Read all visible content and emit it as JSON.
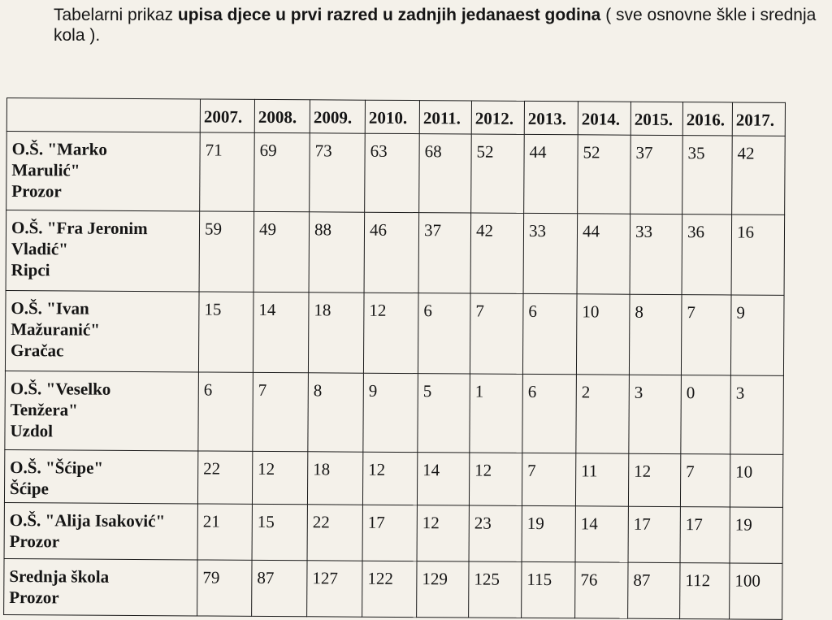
{
  "caption": {
    "part1": "Tabelarni prikaz ",
    "bold": "upisa djece u prvi razred u zadnjih jedanaest  godina",
    "part2": " ( sve osnovne škle i srednja kola )."
  },
  "table": {
    "headers": [
      "2007.",
      "2008.",
      "2009.",
      "2010.",
      "2011.",
      "2012.",
      "2013.",
      "2014.",
      "2015.",
      "2016.",
      "2017."
    ],
    "rows": [
      {
        "name_lines": [
          "O.Š. \"Marko",
          "Marulić\"",
          " Prozor"
        ],
        "values": [
          "71",
          "69",
          "73",
          "63",
          "68",
          "52",
          "44",
          "52",
          "37",
          "35",
          "42"
        ]
      },
      {
        "name_lines": [
          "O.Š. \"Fra Jeronim",
          "Vladić\"",
          "Ripci"
        ],
        "values": [
          "59",
          "49",
          "88",
          "46",
          "37",
          "42",
          "33",
          "44",
          "33",
          "36",
          "16"
        ]
      },
      {
        "name_lines": [
          "O.Š. \"Ivan",
          "Mažuranić\"",
          "Gračac"
        ],
        "values": [
          "15",
          "14",
          "18",
          "12",
          "6",
          "7",
          "6",
          "10",
          "8",
          "7",
          "9"
        ]
      },
      {
        "name_lines": [
          "O.Š. \"Veselko",
          "Tenžera\"",
          "Uzdol"
        ],
        "values": [
          "6",
          "7",
          "8",
          "9",
          "5",
          "1",
          "6",
          "2",
          "3",
          "0",
          "3"
        ]
      },
      {
        "name_lines": [
          "O.Š. \"Šćipe\"",
          "Šćipe"
        ],
        "values": [
          "22",
          "12",
          "18",
          "12",
          "14",
          "12",
          "7",
          "11",
          "12",
          "7",
          "10"
        ]
      },
      {
        "name_lines": [
          "O.Š. \"Alija Isaković\"",
          "Prozor"
        ],
        "values": [
          "21",
          "15",
          "22",
          "17",
          "12",
          "23",
          "19",
          "14",
          "17",
          "17",
          "19"
        ]
      },
      {
        "name_lines": [
          "Srednja škola",
          "Prozor"
        ],
        "values": [
          "79",
          "87",
          "127",
          "122",
          "129",
          "125",
          "115",
          "76",
          "87",
          "112",
          "100"
        ]
      }
    ]
  }
}
